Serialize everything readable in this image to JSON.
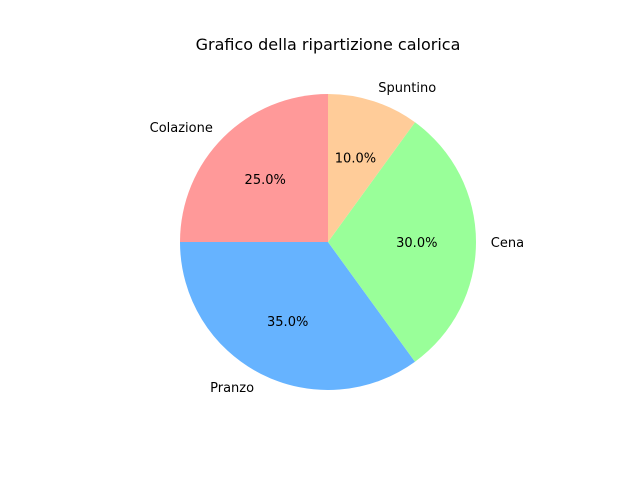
{
  "chart_data": {
    "type": "pie",
    "title": "Grafico della ripartizione calorica",
    "categories": [
      "Colazione",
      "Pranzo",
      "Cena",
      "Spuntino"
    ],
    "values": [
      25.0,
      35.0,
      30.0,
      10.0
    ],
    "percent_labels": [
      "25.0%",
      "35.0%",
      "30.0%",
      "10.0%"
    ],
    "colors": [
      "#ff9999",
      "#66b3ff",
      "#99ff99",
      "#ffcc99"
    ],
    "start_angle_deg": 90,
    "direction": "counterclockwise"
  }
}
